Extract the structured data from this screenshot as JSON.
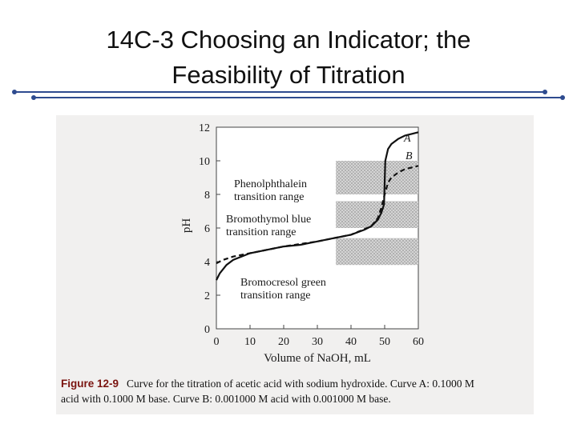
{
  "slide": {
    "title_line1": "14C-3 Choosing an Indicator; the",
    "title_line2": "Feasibility of Titration"
  },
  "figure": {
    "caption_label": "Figure 12-9",
    "caption_line1": "Curve for the titration of acetic acid with sodium hydroxide. Curve A: 0.1000 M",
    "caption_line2": "acid with 0.1000 M base. Curve B: 0.001000 M acid with 0.001000 M base.",
    "indicators": [
      {
        "line1": "Phenolphthalein",
        "line2": "transition range",
        "range": [
          8.0,
          10.0
        ]
      },
      {
        "line1": "Bromothymol blue",
        "line2": "transition range",
        "range": [
          6.0,
          7.6
        ]
      },
      {
        "line1": "Bromocresol green",
        "line2": "transition range",
        "range": [
          3.8,
          5.4
        ]
      }
    ]
  },
  "chart_data": {
    "type": "line",
    "xlabel": "Volume of NaOH, mL",
    "ylabel": "pH",
    "xlim": [
      0,
      60
    ],
    "ylim": [
      0,
      12
    ],
    "x_ticks": [
      "0",
      "10",
      "20",
      "30",
      "40",
      "50",
      "60"
    ],
    "y_ticks": [
      "0",
      "2",
      "4",
      "6",
      "8",
      "10",
      "12"
    ],
    "series": [
      {
        "name": "A",
        "style": "solid",
        "x": [
          0,
          1,
          3,
          5,
          10,
          15,
          20,
          25,
          30,
          35,
          40,
          44,
          46,
          48,
          49,
          49.8,
          50,
          50.2,
          51,
          52,
          54,
          56,
          58,
          60
        ],
        "y": [
          2.9,
          3.3,
          3.8,
          4.1,
          4.5,
          4.7,
          4.9,
          5.0,
          5.2,
          5.4,
          5.6,
          5.9,
          6.1,
          6.5,
          6.9,
          7.4,
          8.7,
          10.0,
          10.7,
          11.0,
          11.3,
          11.5,
          11.6,
          11.7
        ]
      },
      {
        "name": "B",
        "style": "dashed",
        "x": [
          0,
          2,
          5,
          10,
          20,
          30,
          40,
          46,
          48,
          49,
          50,
          51,
          52,
          54,
          56,
          58,
          60
        ],
        "y": [
          3.9,
          4.1,
          4.3,
          4.5,
          4.9,
          5.2,
          5.6,
          6.1,
          6.6,
          7.2,
          8.0,
          8.7,
          9.0,
          9.3,
          9.5,
          9.6,
          9.7
        ]
      }
    ]
  }
}
